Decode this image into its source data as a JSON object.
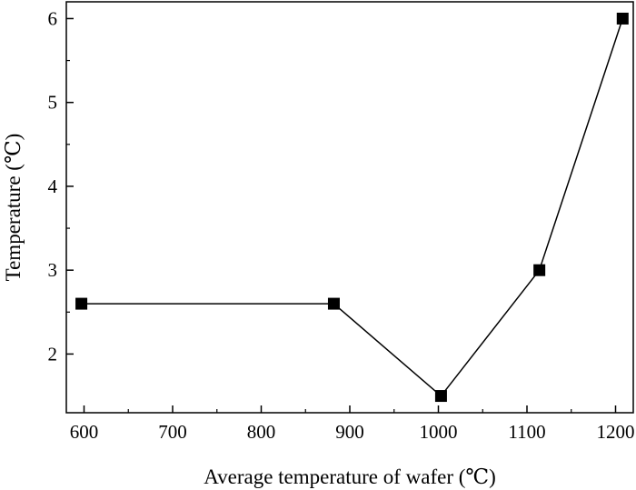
{
  "chart_data": {
    "type": "line",
    "title": "",
    "xlabel": "Average temperature of wafer (℃)",
    "ylabel": "Temperature (℃)",
    "xlim": [
      580,
      1220
    ],
    "ylim": [
      1.3,
      6.2
    ],
    "xticks": [
      600,
      700,
      800,
      900,
      1000,
      1100,
      1200
    ],
    "yticks": [
      2,
      3,
      4,
      5,
      6
    ],
    "marker": "square",
    "line_color": "#000000",
    "marker_color": "#000000",
    "grid": false,
    "legend": "none",
    "series": [
      {
        "x": [
          597,
          882,
          1003,
          1114,
          1208
        ],
        "y": [
          2.6,
          2.6,
          1.5,
          3.0,
          6.0
        ]
      }
    ]
  }
}
